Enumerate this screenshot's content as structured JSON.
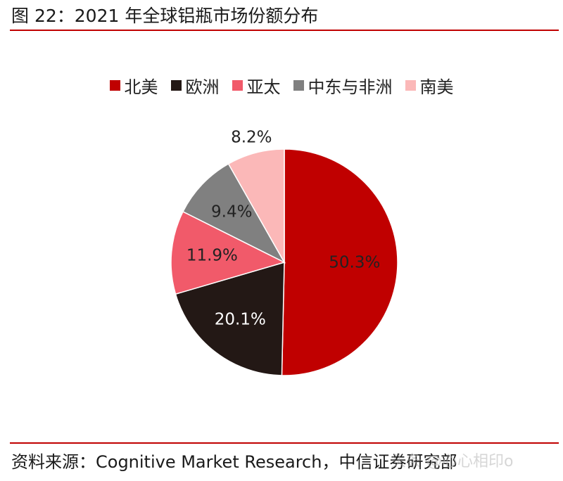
{
  "title": "图 22：2021 年全球铝瓶市场份额分布",
  "footer": "资料来源：Cognitive Market Research，中信证券研究部",
  "watermark": "头条 @心心相印o",
  "legend": [
    {
      "label": "北美",
      "color": "#c00000"
    },
    {
      "label": "欧洲",
      "color": "#231815"
    },
    {
      "label": "亚太",
      "color": "#f15a6a"
    },
    {
      "label": "中东与非洲",
      "color": "#808080"
    },
    {
      "label": "南美",
      "color": "#fbb8b8"
    }
  ],
  "chart_data": {
    "type": "pie",
    "title": "",
    "legend_position": "top",
    "slices": [
      {
        "label": "北美",
        "value": 50.3,
        "display": "50.3%",
        "color": "#c00000",
        "text_color": "#222222"
      },
      {
        "label": "欧洲",
        "value": 20.1,
        "display": "20.1%",
        "color": "#231815",
        "text_color": "#ffffff"
      },
      {
        "label": "亚太",
        "value": 11.9,
        "display": "11.9%",
        "color": "#f15a6a",
        "text_color": "#222222"
      },
      {
        "label": "中东与非洲",
        "value": 9.4,
        "display": "9.4%",
        "color": "#808080",
        "text_color": "#222222"
      },
      {
        "label": "南美",
        "value": 8.2,
        "display": "8.2%",
        "color": "#fbb8b8",
        "text_color": "#222222"
      }
    ]
  }
}
